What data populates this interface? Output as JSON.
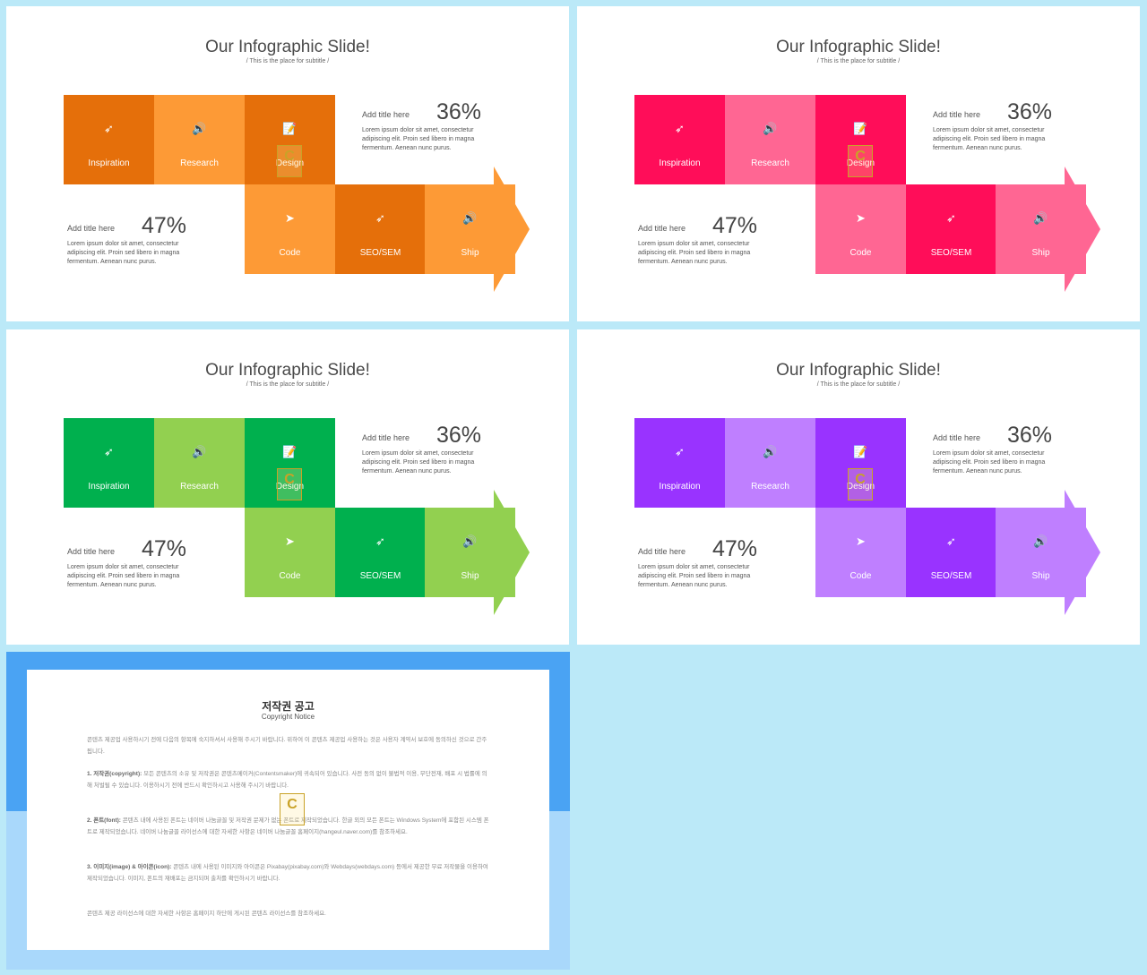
{
  "slides": [
    {
      "title": "Our Infographic Slide!",
      "subtitle": "/ This is the place for subtitle /",
      "colors": {
        "dark": "#e56f0a",
        "light": "#fd9a36"
      },
      "stat1": {
        "title": "Add title here",
        "percent": "36%",
        "body": "Lorem ipsum dolor sit amet, consectetur adipiscing elit. Proin sed libero in magna fermentum. Aenean nunc purus."
      },
      "stat2": {
        "title": "Add title here",
        "percent": "47%",
        "body": "Lorem ipsum dolor sit amet, consectetur adipiscing elit. Proin sed libero in magna fermentum. Aenean nunc purus."
      },
      "steps": [
        "Inspiration",
        "Research",
        "Design",
        "Code",
        "SEO/SEM",
        "Ship"
      ]
    },
    {
      "title": "Our Infographic Slide!",
      "subtitle": "/ This is the place for subtitle /",
      "colors": {
        "dark": "#ff0d59",
        "light": "#ff6693"
      },
      "stat1": {
        "title": "Add title here",
        "percent": "36%",
        "body": "Lorem ipsum dolor sit amet, consectetur adipiscing elit. Proin sed libero in magna fermentum. Aenean nunc purus."
      },
      "stat2": {
        "title": "Add title here",
        "percent": "47%",
        "body": "Lorem ipsum dolor sit amet, consectetur adipiscing elit. Proin sed libero in magna fermentum. Aenean nunc purus."
      },
      "steps": [
        "Inspiration",
        "Research",
        "Design",
        "Code",
        "SEO/SEM",
        "Ship"
      ]
    },
    {
      "title": "Our Infographic Slide!",
      "subtitle": "/ This is the place for subtitle /",
      "colors": {
        "dark": "#00b04e",
        "light": "#92d050"
      },
      "stat1": {
        "title": "Add title here",
        "percent": "36%",
        "body": "Lorem ipsum dolor sit amet, consectetur adipiscing elit. Proin sed libero in magna fermentum. Aenean nunc purus."
      },
      "stat2": {
        "title": "Add title here",
        "percent": "47%",
        "body": "Lorem ipsum dolor sit amet, consectetur adipiscing elit. Proin sed libero in magna fermentum. Aenean nunc purus."
      },
      "steps": [
        "Inspiration",
        "Research",
        "Design",
        "Code",
        "SEO/SEM",
        "Ship"
      ]
    },
    {
      "title": "Our Infographic Slide!",
      "subtitle": "/ This is the place for subtitle /",
      "colors": {
        "dark": "#9933ff",
        "light": "#bf7fff"
      },
      "stat1": {
        "title": "Add title here",
        "percent": "36%",
        "body": "Lorem ipsum dolor sit amet, consectetur adipiscing elit. Proin sed libero in magna fermentum. Aenean nunc purus."
      },
      "stat2": {
        "title": "Add title here",
        "percent": "47%",
        "body": "Lorem ipsum dolor sit amet, consectetur adipiscing elit. Proin sed libero in magna fermentum. Aenean nunc purus."
      },
      "steps": [
        "Inspiration",
        "Research",
        "Design",
        "Code",
        "SEO/SEM",
        "Ship"
      ]
    }
  ],
  "icons": {
    "rocket": "rocket-icon",
    "speaker": "speaker-icon",
    "notepad": "notepad-icon",
    "plane": "paper-plane-icon"
  },
  "watermark": "C",
  "notice": {
    "title": "저작권 공고",
    "subtitle": "Copyright Notice",
    "intro": "콘텐츠 제공업 사용하시기 전에 다음의 항목에 숙지하셔서 사용해 주시기 바랍니다. 위하여 이 콘텐츠 제공업 사용하는 것은 사용자 계약서 보호에 동의하신 것으로 간주됩니다.",
    "p1_head": "1. 저작권(copyright):",
    "p1": "모든 콘텐츠의 소유 및 저작권은 콘텐츠메이커(Contentsmaker)에 귀속되어 있습니다. 사전 동의 없이 불법적 이용, 무단전재, 배포 시 법률에 의해 처벌될 수 있습니다. 이용하시기 전에 반드시 확인하시고 사용해 주시기 바랍니다.",
    "p2_head": "2. 폰트(font):",
    "p2": "콘텐츠 내에 사용된 폰트는 네이버 나눔글꼴 및 저작권 문제가 없는 폰트로 제작되었습니다. 한글 외의 모든 폰트는 Windows System에 포함된 시스템 폰트로 제작되었습니다. 네이버 나눔글꼴 라이선스에 대한 자세한 사항은 네이버 나눔글꼴 홈페이지(hangeul.naver.com)를 참조하세요.",
    "p3_head": "3. 이미지(image) & 아이콘(icon):",
    "p3": "콘텐츠 내에 사용된 이미지와 아이콘은 Pixabay(pixabay.com)와 Webdays(webdays.com) 등에서 제공한 무료 저작물을 이용하여 제작되었습니다. 이미지, 폰트의 재배포는 금지되며 출처를 확인하시기 바랍니다.",
    "outro": "콘텐츠 제공 라이선스에 대한 자세한 사항은 홈페이지 하단에 게시된 콘텐츠 라이선스를 참조하세요."
  }
}
